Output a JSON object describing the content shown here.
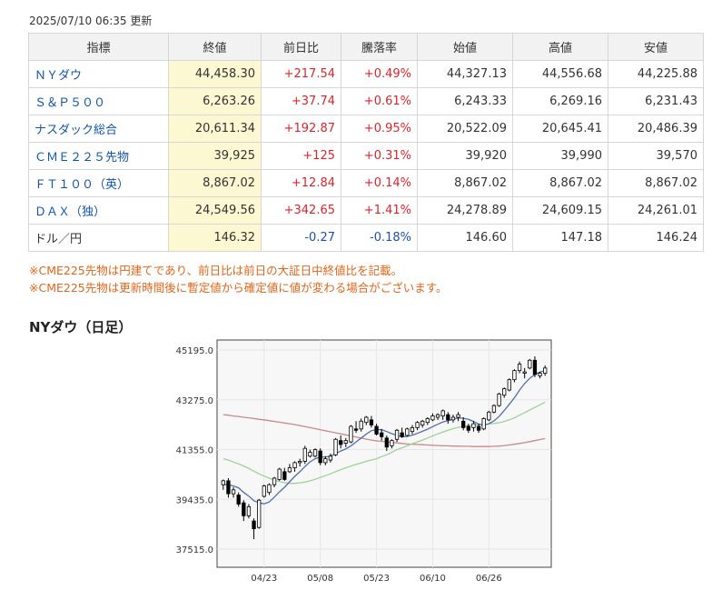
{
  "updated": "2025/07/10 06:35 更新",
  "table": {
    "headers": [
      "指標",
      "終値",
      "前日比",
      "騰落率",
      "始値",
      "高値",
      "安値"
    ],
    "rows": [
      {
        "name": "ＮＹダウ",
        "close": "44,458.30",
        "change": "+217.54",
        "pct": "+0.49%",
        "open": "44,327.13",
        "high": "44,556.68",
        "low": "44,225.88",
        "dir": "up",
        "link": true
      },
      {
        "name": "Ｓ＆Ｐ５００",
        "close": "6,263.26",
        "change": "+37.74",
        "pct": "+0.61%",
        "open": "6,243.33",
        "high": "6,269.16",
        "low": "6,231.43",
        "dir": "up",
        "link": true
      },
      {
        "name": "ナスダック総合",
        "close": "20,611.34",
        "change": "+192.87",
        "pct": "+0.95%",
        "open": "20,522.09",
        "high": "20,645.41",
        "low": "20,486.39",
        "dir": "up",
        "link": true
      },
      {
        "name": "ＣＭＥ２２５先物",
        "close": "39,925",
        "change": "+125",
        "pct": "+0.31%",
        "open": "39,920",
        "high": "39,990",
        "low": "39,570",
        "dir": "up",
        "link": true
      },
      {
        "name": "ＦＴ１００（英）",
        "close": "8,867.02",
        "change": "+12.84",
        "pct": "+0.14%",
        "open": "8,867.02",
        "high": "8,867.02",
        "low": "8,867.02",
        "dir": "up",
        "link": true
      },
      {
        "name": "ＤＡＸ（独）",
        "close": "24,549.56",
        "change": "+342.65",
        "pct": "+1.41%",
        "open": "24,278.89",
        "high": "24,609.15",
        "low": "24,261.01",
        "dir": "up",
        "link": true
      },
      {
        "name": "ドル／円",
        "close": "146.32",
        "change": "-0.27",
        "pct": "-0.18%",
        "open": "146.60",
        "high": "147.18",
        "low": "146.24",
        "dir": "down",
        "link": false
      }
    ]
  },
  "notes": [
    "※CME225先物は円建てであり、前日比は前日の大証日中終値比を記載。",
    "※CME225先物は更新時間後に暫定値から確定値に値が変わる場合がございます。"
  ],
  "chart": {
    "title": "NYダウ（日足）",
    "colors": {
      "up": "#ffffff",
      "down": "#000000",
      "ma_short": "#4d6fb0",
      "ma_mid": "#9fd19a",
      "ma_long": "#c98a8a",
      "grid": "#e6e6e6",
      "plot_bg": "#f7f7f7"
    }
  },
  "chart_data": {
    "type": "candlestick",
    "title": "NYダウ（日足）",
    "ylim": [
      37515.0,
      45195.0
    ],
    "y_ticks": [
      "45195.0",
      "43275.0",
      "41355.0",
      "39435.0",
      "37515.0"
    ],
    "x_ticks": [
      {
        "label": "04/23",
        "index": 8
      },
      {
        "label": "05/08",
        "index": 19
      },
      {
        "label": "05/23",
        "index": 30
      },
      {
        "label": "06/10",
        "index": 41
      },
      {
        "label": "06/26",
        "index": 52
      }
    ],
    "candles": [
      [
        40000,
        40200,
        39800,
        40150
      ],
      [
        40150,
        40250,
        39500,
        39650
      ],
      [
        39650,
        39900,
        39500,
        39800
      ],
      [
        39600,
        39700,
        39150,
        39250
      ],
      [
        39300,
        39400,
        38600,
        38800
      ],
      [
        38800,
        39250,
        38700,
        39150
      ],
      [
        38600,
        38700,
        37900,
        38300
      ],
      [
        38350,
        39450,
        38300,
        39400
      ],
      [
        39550,
        40000,
        39500,
        39950
      ],
      [
        39700,
        40050,
        39600,
        40000
      ],
      [
        40000,
        40300,
        39900,
        40250
      ],
      [
        40200,
        40650,
        40150,
        40600
      ],
      [
        40500,
        40650,
        40150,
        40200
      ],
      [
        40500,
        40800,
        40450,
        40650
      ],
      [
        40650,
        40900,
        40500,
        40850
      ],
      [
        40850,
        41000,
        40700,
        40900
      ],
      [
        40900,
        41500,
        40800,
        41400
      ],
      [
        41100,
        41350,
        41050,
        41250
      ],
      [
        41100,
        41400,
        41050,
        41350
      ],
      [
        41300,
        41400,
        40750,
        40850
      ],
      [
        40850,
        41100,
        40750,
        41000
      ],
      [
        40950,
        41200,
        40850,
        41100
      ],
      [
        41150,
        41800,
        41100,
        41750
      ],
      [
        41700,
        41900,
        41400,
        41550
      ],
      [
        41600,
        41800,
        41450,
        41700
      ],
      [
        41650,
        42300,
        41600,
        42250
      ],
      [
        42150,
        42450,
        42000,
        42100
      ],
      [
        42150,
        42550,
        42050,
        42450
      ],
      [
        42400,
        42650,
        42300,
        42600
      ],
      [
        42500,
        42650,
        42200,
        42300
      ],
      [
        42250,
        42350,
        41900,
        41950
      ],
      [
        42000,
        42150,
        41700,
        41850
      ],
      [
        41800,
        41900,
        41300,
        41450
      ],
      [
        41500,
        41750,
        41400,
        41700
      ],
      [
        41750,
        42150,
        41650,
        42100
      ],
      [
        42000,
        42200,
        41800,
        41850
      ],
      [
        41900,
        42200,
        41850,
        42150
      ],
      [
        42050,
        42300,
        41950,
        42200
      ],
      [
        42200,
        42450,
        42100,
        42400
      ],
      [
        42300,
        42500,
        42200,
        42450
      ],
      [
        42400,
        42600,
        42300,
        42550
      ],
      [
        42500,
        42750,
        42450,
        42650
      ],
      [
        42600,
        42750,
        42500,
        42700
      ],
      [
        42650,
        42900,
        42500,
        42850
      ],
      [
        42700,
        42800,
        42350,
        42500
      ],
      [
        42500,
        42700,
        42400,
        42600
      ],
      [
        42600,
        42800,
        42450,
        42700
      ],
      [
        42450,
        42600,
        42100,
        42200
      ],
      [
        42250,
        42350,
        42000,
        42100
      ],
      [
        42200,
        42450,
        42050,
        42350
      ],
      [
        42250,
        42350,
        42000,
        42100
      ],
      [
        42150,
        42600,
        42100,
        42550
      ],
      [
        42500,
        42850,
        42450,
        42800
      ],
      [
        42800,
        43100,
        42750,
        43050
      ],
      [
        43050,
        43550,
        43000,
        43500
      ],
      [
        43450,
        43750,
        43350,
        43700
      ],
      [
        43650,
        44100,
        43600,
        44050
      ],
      [
        44050,
        44450,
        43950,
        44400
      ],
      [
        44400,
        44750,
        44300,
        44650
      ],
      [
        44300,
        44500,
        44100,
        44350
      ],
      [
        44500,
        44850,
        44450,
        44800
      ],
      [
        44800,
        44950,
        44150,
        44250
      ],
      [
        44200,
        44350,
        44100,
        44300
      ],
      [
        44300,
        44600,
        44200,
        44500
      ]
    ],
    "ma_short": [
      40000,
      40000,
      39950,
      39880,
      39700,
      39560,
      39380,
      39300,
      39260,
      39330,
      39520,
      39720,
      39900,
      40110,
      40320,
      40500,
      40700,
      40880,
      41000,
      41060,
      41070,
      41100,
      41200,
      41300,
      41380,
      41500,
      41650,
      41800,
      41950,
      42080,
      42130,
      42120,
      42050,
      41970,
      41900,
      41850,
      41860,
      41910,
      41980,
      42060,
      42140,
      42240,
      42330,
      42420,
      42470,
      42520,
      42580,
      42560,
      42520,
      42440,
      42340,
      42300,
      42350,
      42460,
      42630,
      42860,
      43100,
      43350,
      43650,
      43900,
      44100,
      44250,
      44350,
      44400
    ],
    "ma_mid": [
      41000,
      40950,
      40870,
      40800,
      40720,
      40630,
      40520,
      40420,
      40330,
      40250,
      40180,
      40120,
      40080,
      40050,
      40050,
      40070,
      40100,
      40150,
      40210,
      40280,
      40350,
      40420,
      40500,
      40580,
      40650,
      40720,
      40780,
      40840,
      40900,
      40950,
      41000,
      41080,
      41150,
      41250,
      41350,
      41420,
      41500,
      41580,
      41650,
      41720,
      41800,
      41880,
      41960,
      42030,
      42100,
      42160,
      42210,
      42250,
      42280,
      42300,
      42310,
      42320,
      42340,
      42360,
      42390,
      42440,
      42500,
      42580,
      42680,
      42780,
      42880,
      42980,
      43080,
      43180
    ],
    "ma_long": [
      42700,
      42680,
      42650,
      42630,
      42600,
      42580,
      42550,
      42520,
      42500,
      42470,
      42440,
      42410,
      42380,
      42350,
      42320,
      42280,
      42240,
      42200,
      42160,
      42120,
      42080,
      42040,
      42000,
      41960,
      41920,
      41880,
      41840,
      41800,
      41760,
      41720,
      41690,
      41670,
      41650,
      41630,
      41610,
      41590,
      41570,
      41560,
      41550,
      41540,
      41530,
      41520,
      41510,
      41500,
      41500,
      41490,
      41490,
      41480,
      41480,
      41470,
      41470,
      41470,
      41470,
      41480,
      41490,
      41510,
      41530,
      41560,
      41590,
      41620,
      41660,
      41700,
      41740,
      41780
    ]
  }
}
